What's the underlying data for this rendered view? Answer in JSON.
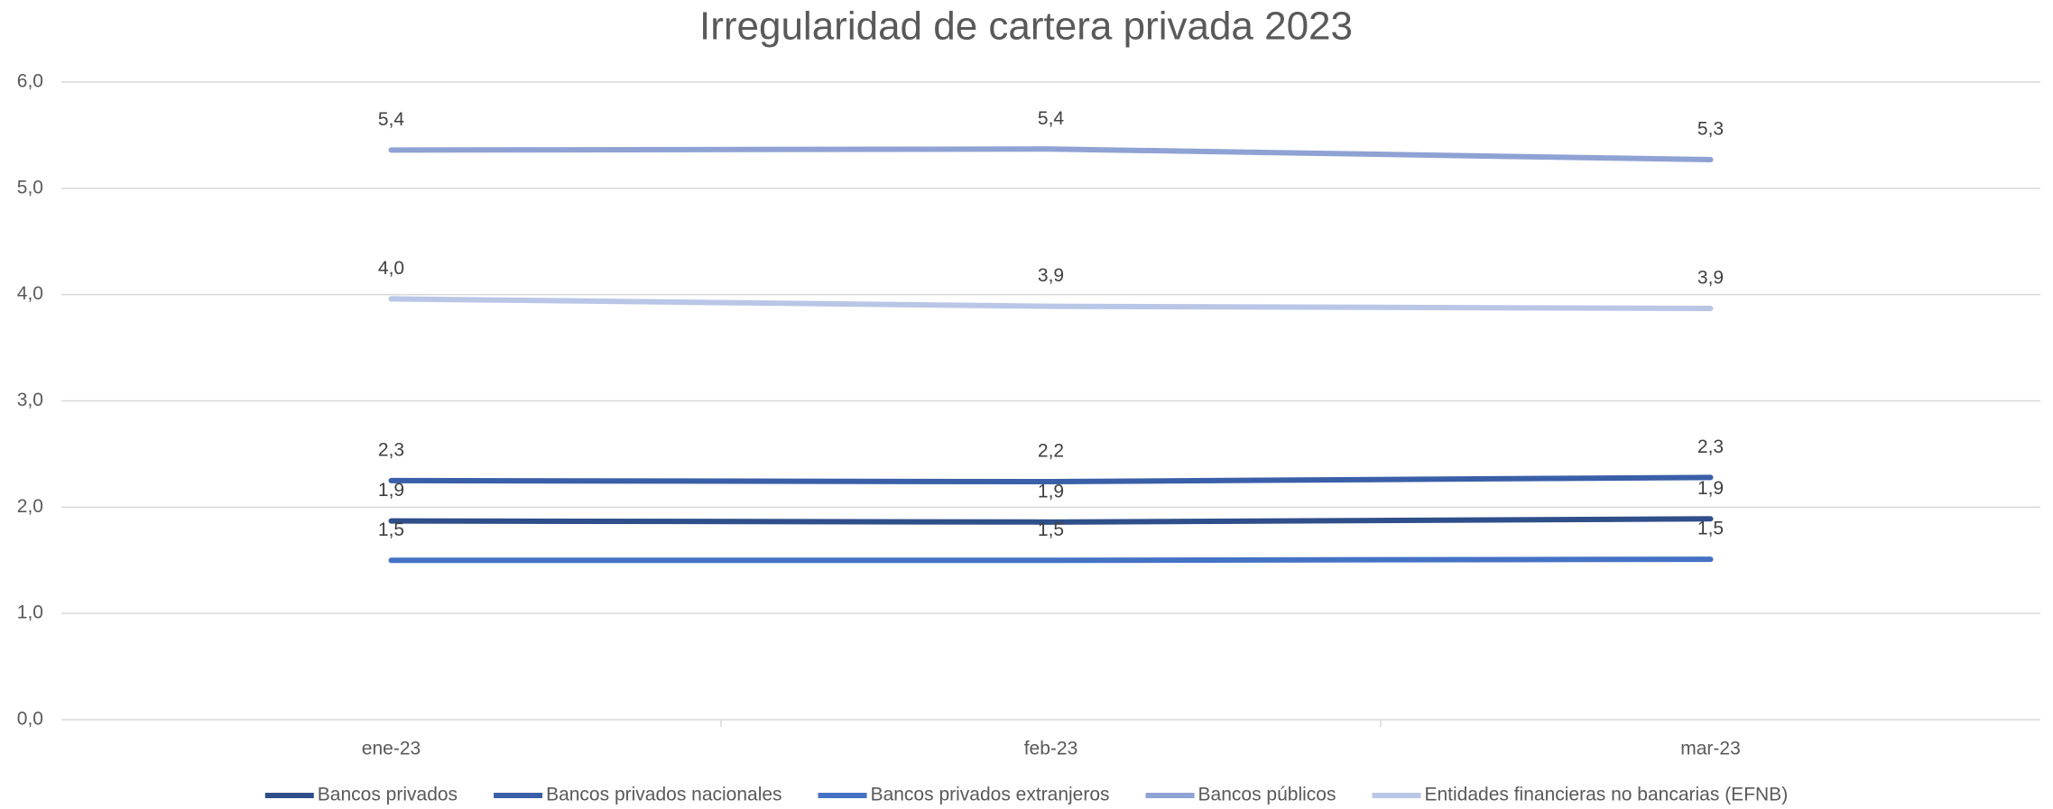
{
  "chart_data": {
    "type": "line",
    "title": "Irregularidad de cartera privada 2023",
    "categories": [
      "ene-23",
      "feb-23",
      "mar-23"
    ],
    "series": [
      {
        "name": "Bancos privados",
        "color": "#2f4f8a",
        "values": [
          1.87,
          1.86,
          1.89
        ],
        "value_labels": [
          "1,9",
          "1,9",
          "1,9"
        ]
      },
      {
        "name": "Bancos privados nacionales",
        "color": "#3a5fa8",
        "values": [
          2.25,
          2.24,
          2.28
        ],
        "value_labels": [
          "2,3",
          "2,2",
          "2,3"
        ]
      },
      {
        "name": "Bancos privados extranjeros",
        "color": "#4472c4",
        "values": [
          1.5,
          1.5,
          1.51
        ],
        "value_labels": [
          "1,5",
          "1,5",
          "1,5"
        ]
      },
      {
        "name": "Bancos públicos",
        "color": "#8fa2d4",
        "values": [
          5.36,
          5.37,
          5.27
        ],
        "value_labels": [
          "5,4",
          "5,4",
          "5,3"
        ]
      },
      {
        "name": "Entidades financieras no bancarias (EFNB)",
        "color": "#bac6e6",
        "values": [
          3.96,
          3.89,
          3.87
        ],
        "value_labels": [
          "4,0",
          "3,9",
          "3,9"
        ]
      }
    ],
    "ylim": [
      0,
      6
    ],
    "yticks": [
      {
        "value": 0,
        "label": "0,0"
      },
      {
        "value": 1,
        "label": "1,0"
      },
      {
        "value": 2,
        "label": "2,0"
      },
      {
        "value": 3,
        "label": "3,0"
      },
      {
        "value": 4,
        "label": "4,0"
      },
      {
        "value": 5,
        "label": "5,0"
      },
      {
        "value": 6,
        "label": "6,0"
      }
    ],
    "grid": true,
    "legend": "bottom"
  }
}
